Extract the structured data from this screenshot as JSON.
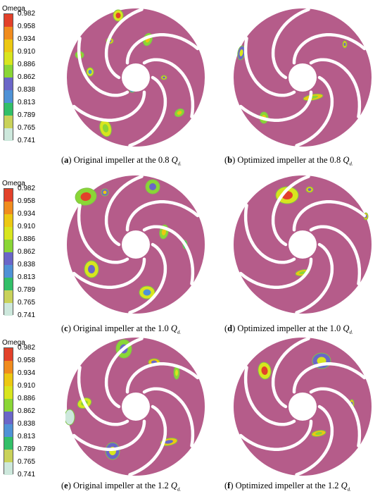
{
  "legend": {
    "title": "Omega",
    "values": [
      "0.982",
      "0.958",
      "0.934",
      "0.910",
      "0.886",
      "0.862",
      "0.838",
      "0.813",
      "0.789",
      "0.765",
      "0.741"
    ],
    "colors": [
      "#e2412a",
      "#f08c1e",
      "#ecc812",
      "#d8e51e",
      "#8ad636",
      "#6a66c8",
      "#4f92d6",
      "#32bf68",
      "#c9d25a",
      "#cde8dc",
      "#aaa6b4"
    ]
  },
  "colors": {
    "background": "#b55c8a",
    "blade": "#ffffff",
    "hub": "#ffffff"
  },
  "panels": [
    {
      "label": "a",
      "text": "Original impeller at the 0.8",
      "unit": "Q",
      "sub": "d."
    },
    {
      "label": "b",
      "text": "Optimized impeller at the 0.8",
      "unit": "Q",
      "sub": "d."
    },
    {
      "label": "c",
      "text": "Original impeller at the 1.0",
      "unit": "Q",
      "sub": "d."
    },
    {
      "label": "d",
      "text": "Optimized impeller at the 1.0",
      "unit": "Q",
      "sub": "d."
    },
    {
      "label": "e",
      "text": "Original impeller at the 1.2",
      "unit": "Q",
      "sub": "d."
    },
    {
      "label": "f",
      "text": "Optimized impeller at the 1.2",
      "unit": "Q",
      "sub": "d."
    }
  ]
}
